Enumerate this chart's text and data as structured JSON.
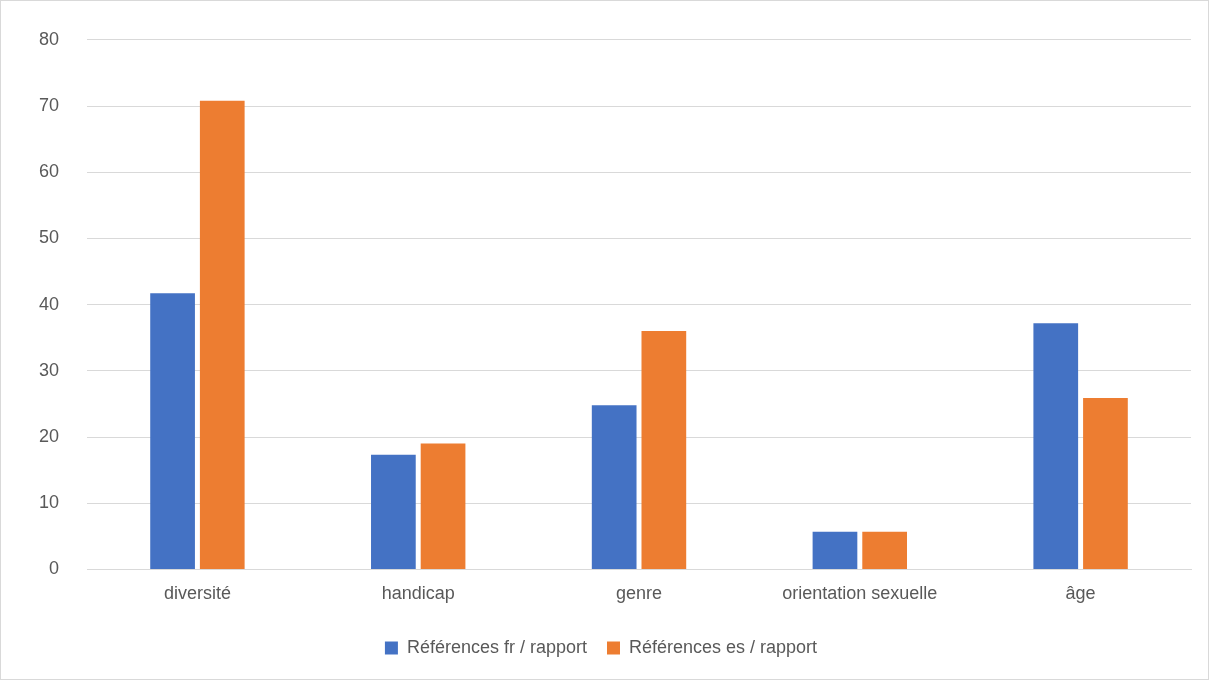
{
  "chart_data": {
    "type": "bar",
    "categories": [
      "diversité",
      "handicap",
      "genre",
      "orientation sexuelle",
      "âge"
    ],
    "series": [
      {
        "name": "Références fr / rapport",
        "color": "#4472c4",
        "values": [
          41.7,
          17.3,
          24.8,
          5.7,
          37.2
        ]
      },
      {
        "name": "Références es / rapport",
        "color": "#ed7d31",
        "values": [
          70.8,
          19.0,
          36.0,
          5.7,
          25.9
        ]
      }
    ],
    "ylim": [
      0,
      80
    ],
    "yticks": [
      0,
      10,
      20,
      30,
      40,
      50,
      60,
      70,
      80
    ],
    "grid": "y",
    "legend": "bottom"
  }
}
